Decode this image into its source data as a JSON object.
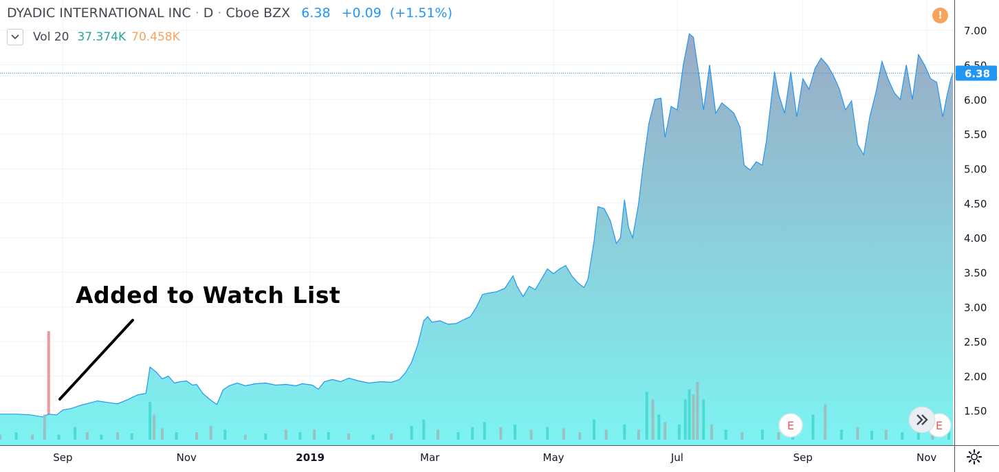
{
  "header": {
    "symbol_name": "DYADIC INTERNATIONAL INC",
    "interval": "D",
    "exchange": "Cboe BZX",
    "last_price": "6.38",
    "change": "+0.09",
    "change_pct": "(+1.51%)"
  },
  "volume_legend": {
    "label": "Vol 20",
    "value1": "37.374K",
    "value2": "70.458K"
  },
  "annotation": {
    "text": "Added to Watch List"
  },
  "icons": {
    "alert": "exclamation-icon",
    "toggle": "chevron-down-icon",
    "scroll": "double-chevron-right-icon",
    "settings": "gear-icon",
    "earnings": "earnings-marker-icon"
  },
  "earnings_marker_label": "E",
  "colors": {
    "line": "#2196f3",
    "fill_top": "#9aaac4",
    "fill_bottom": "#7df3f2",
    "price_tag": "#2196f3",
    "volume_up": "#44d6cf",
    "volume_down": "#9fb7b9",
    "alert": "#f7a35c",
    "marker_bar": "#ef9a9a",
    "change_text": "#2196f3"
  },
  "chart_data": {
    "type": "area",
    "y_axis": {
      "ylim": [
        1.1,
        7.2
      ],
      "ticks": [
        "1.50",
        "2.00",
        "2.50",
        "3.00",
        "3.50",
        "4.00",
        "4.50",
        "5.00",
        "5.50",
        "6.00",
        "6.50",
        "7.00"
      ],
      "position": "right"
    },
    "x_axis": {
      "start": "2018-08-01",
      "end": "2019-11-14",
      "tick_labels": [
        {
          "label": "Sep",
          "date": "2018-09-01"
        },
        {
          "label": "Nov",
          "date": "2018-11-01"
        },
        {
          "label": "2019",
          "date": "2019-01-01",
          "bold": true
        },
        {
          "label": "Mar",
          "date": "2019-03-01"
        },
        {
          "label": "May",
          "date": "2019-05-01"
        },
        {
          "label": "Jul",
          "date": "2019-07-01"
        },
        {
          "label": "Sep",
          "date": "2019-09-01"
        },
        {
          "label": "Nov",
          "date": "2019-11-01"
        }
      ]
    },
    "current_price": 6.38,
    "grid": true,
    "price_series": [
      [
        "2018-08-01",
        1.45
      ],
      [
        "2018-08-10",
        1.45
      ],
      [
        "2018-08-16",
        1.44
      ],
      [
        "2018-08-22",
        1.41
      ],
      [
        "2018-08-25",
        1.45
      ],
      [
        "2018-08-29",
        1.44
      ],
      [
        "2018-09-01",
        1.51
      ],
      [
        "2018-09-05",
        1.53
      ],
      [
        "2018-09-10",
        1.58
      ],
      [
        "2018-09-14",
        1.61
      ],
      [
        "2018-09-18",
        1.64
      ],
      [
        "2018-09-23",
        1.62
      ],
      [
        "2018-09-28",
        1.6
      ],
      [
        "2018-10-03",
        1.66
      ],
      [
        "2018-10-08",
        1.73
      ],
      [
        "2018-10-12",
        1.75
      ],
      [
        "2018-10-14",
        2.13
      ],
      [
        "2018-10-17",
        2.06
      ],
      [
        "2018-10-20",
        1.96
      ],
      [
        "2018-10-23",
        2.0
      ],
      [
        "2018-10-26",
        1.9
      ],
      [
        "2018-10-29",
        1.92
      ],
      [
        "2018-11-01",
        1.93
      ],
      [
        "2018-11-04",
        1.87
      ],
      [
        "2018-11-06",
        1.88
      ],
      [
        "2018-11-09",
        1.75
      ],
      [
        "2018-11-13",
        1.65
      ],
      [
        "2018-11-16",
        1.59
      ],
      [
        "2018-11-19",
        1.8
      ],
      [
        "2018-11-22",
        1.86
      ],
      [
        "2018-11-26",
        1.9
      ],
      [
        "2018-11-30",
        1.86
      ],
      [
        "2018-12-05",
        1.89
      ],
      [
        "2018-12-10",
        1.9
      ],
      [
        "2018-12-15",
        1.87
      ],
      [
        "2018-12-20",
        1.88
      ],
      [
        "2018-12-25",
        1.86
      ],
      [
        "2018-12-28",
        1.89
      ],
      [
        "2019-01-02",
        1.87
      ],
      [
        "2019-01-05",
        1.81
      ],
      [
        "2019-01-08",
        1.92
      ],
      [
        "2019-01-12",
        1.95
      ],
      [
        "2019-01-16",
        1.92
      ],
      [
        "2019-01-20",
        1.97
      ],
      [
        "2019-01-25",
        1.93
      ],
      [
        "2019-01-30",
        1.9
      ],
      [
        "2019-02-05",
        1.92
      ],
      [
        "2019-02-10",
        1.91
      ],
      [
        "2019-02-14",
        1.95
      ],
      [
        "2019-02-17",
        2.05
      ],
      [
        "2019-02-20",
        2.2
      ],
      [
        "2019-02-23",
        2.45
      ],
      [
        "2019-02-26",
        2.8
      ],
      [
        "2019-02-28",
        2.86
      ],
      [
        "2019-03-02",
        2.78
      ],
      [
        "2019-03-06",
        2.8
      ],
      [
        "2019-03-10",
        2.75
      ],
      [
        "2019-03-14",
        2.76
      ],
      [
        "2019-03-18",
        2.82
      ],
      [
        "2019-03-21",
        2.86
      ],
      [
        "2019-03-24",
        3.0
      ],
      [
        "2019-03-27",
        3.18
      ],
      [
        "2019-03-30",
        3.2
      ],
      [
        "2019-04-03",
        3.22
      ],
      [
        "2019-04-07",
        3.27
      ],
      [
        "2019-04-11",
        3.45
      ],
      [
        "2019-04-13",
        3.3
      ],
      [
        "2019-04-16",
        3.15
      ],
      [
        "2019-04-19",
        3.3
      ],
      [
        "2019-04-22",
        3.25
      ],
      [
        "2019-04-25",
        3.4
      ],
      [
        "2019-04-28",
        3.55
      ],
      [
        "2019-05-01",
        3.48
      ],
      [
        "2019-05-04",
        3.55
      ],
      [
        "2019-05-07",
        3.6
      ],
      [
        "2019-05-10",
        3.45
      ],
      [
        "2019-05-13",
        3.35
      ],
      [
        "2019-05-16",
        3.28
      ],
      [
        "2019-05-18",
        3.4
      ],
      [
        "2019-05-21",
        3.95
      ],
      [
        "2019-05-23",
        4.45
      ],
      [
        "2019-05-26",
        4.42
      ],
      [
        "2019-05-29",
        4.25
      ],
      [
        "2019-06-01",
        3.92
      ],
      [
        "2019-06-03",
        4.0
      ],
      [
        "2019-06-05",
        4.55
      ],
      [
        "2019-06-07",
        4.15
      ],
      [
        "2019-06-09",
        4.0
      ],
      [
        "2019-06-12",
        4.5
      ],
      [
        "2019-06-14",
        5.0
      ],
      [
        "2019-06-17",
        5.65
      ],
      [
        "2019-06-20",
        6.0
      ],
      [
        "2019-06-23",
        6.02
      ],
      [
        "2019-06-25",
        5.45
      ],
      [
        "2019-06-28",
        5.9
      ],
      [
        "2019-07-01",
        5.85
      ],
      [
        "2019-07-04",
        6.5
      ],
      [
        "2019-07-07",
        6.95
      ],
      [
        "2019-07-09",
        6.9
      ],
      [
        "2019-07-12",
        6.3
      ],
      [
        "2019-07-14",
        5.85
      ],
      [
        "2019-07-17",
        6.5
      ],
      [
        "2019-07-20",
        5.8
      ],
      [
        "2019-07-23",
        5.95
      ],
      [
        "2019-07-26",
        5.88
      ],
      [
        "2019-07-29",
        5.8
      ],
      [
        "2019-08-01",
        5.6
      ],
      [
        "2019-08-03",
        5.05
      ],
      [
        "2019-08-06",
        4.98
      ],
      [
        "2019-08-09",
        5.1
      ],
      [
        "2019-08-12",
        5.05
      ],
      [
        "2019-08-14",
        5.4
      ],
      [
        "2019-08-16",
        5.9
      ],
      [
        "2019-08-18",
        6.4
      ],
      [
        "2019-08-20",
        6.08
      ],
      [
        "2019-08-23",
        5.8
      ],
      [
        "2019-08-26",
        6.4
      ],
      [
        "2019-08-29",
        5.75
      ],
      [
        "2019-09-01",
        6.3
      ],
      [
        "2019-09-04",
        6.15
      ],
      [
        "2019-09-07",
        6.45
      ],
      [
        "2019-09-10",
        6.6
      ],
      [
        "2019-09-13",
        6.5
      ],
      [
        "2019-09-16",
        6.35
      ],
      [
        "2019-09-19",
        6.15
      ],
      [
        "2019-09-22",
        5.85
      ],
      [
        "2019-09-25",
        5.98
      ],
      [
        "2019-09-28",
        5.35
      ],
      [
        "2019-10-01",
        5.2
      ],
      [
        "2019-10-04",
        5.75
      ],
      [
        "2019-10-07",
        6.1
      ],
      [
        "2019-10-10",
        6.55
      ],
      [
        "2019-10-13",
        6.3
      ],
      [
        "2019-10-16",
        6.1
      ],
      [
        "2019-10-19",
        6.0
      ],
      [
        "2019-10-22",
        6.5
      ],
      [
        "2019-10-25",
        6.0
      ],
      [
        "2019-10-28",
        6.65
      ],
      [
        "2019-10-31",
        6.5
      ],
      [
        "2019-11-03",
        6.3
      ],
      [
        "2019-11-06",
        6.25
      ],
      [
        "2019-11-09",
        5.75
      ],
      [
        "2019-11-11",
        6.05
      ],
      [
        "2019-11-13",
        6.3
      ],
      [
        "2019-11-14",
        6.38
      ]
    ],
    "volume_series": [
      [
        "2018-08-01",
        0.2,
        "down"
      ],
      [
        "2018-08-09",
        0.3,
        "up"
      ],
      [
        "2018-08-17",
        0.2,
        "down"
      ],
      [
        "2018-08-23",
        1.0,
        "down"
      ],
      [
        "2018-08-30",
        0.2,
        "up"
      ],
      [
        "2018-09-07",
        0.5,
        "up"
      ],
      [
        "2018-09-13",
        0.3,
        "down"
      ],
      [
        "2018-09-20",
        0.2,
        "up"
      ],
      [
        "2018-09-28",
        0.3,
        "down"
      ],
      [
        "2018-10-05",
        0.25,
        "up"
      ],
      [
        "2018-10-14",
        1.5,
        "up"
      ],
      [
        "2018-10-16",
        1.0,
        "down"
      ],
      [
        "2018-10-20",
        0.45,
        "down"
      ],
      [
        "2018-10-27",
        0.3,
        "up"
      ],
      [
        "2018-11-06",
        0.3,
        "down"
      ],
      [
        "2018-11-13",
        0.55,
        "down"
      ],
      [
        "2018-11-20",
        0.4,
        "up"
      ],
      [
        "2018-11-30",
        0.2,
        "down"
      ],
      [
        "2018-12-10",
        0.25,
        "up"
      ],
      [
        "2018-12-20",
        0.4,
        "down"
      ],
      [
        "2018-12-27",
        0.3,
        "up"
      ],
      [
        "2019-01-03",
        0.4,
        "down"
      ],
      [
        "2019-01-10",
        0.3,
        "up"
      ],
      [
        "2019-01-20",
        0.25,
        "down"
      ],
      [
        "2019-02-01",
        0.2,
        "up"
      ],
      [
        "2019-02-10",
        0.25,
        "down"
      ],
      [
        "2019-02-20",
        0.55,
        "up"
      ],
      [
        "2019-02-26",
        0.8,
        "up"
      ],
      [
        "2019-03-05",
        0.4,
        "down"
      ],
      [
        "2019-03-15",
        0.3,
        "up"
      ],
      [
        "2019-03-22",
        0.5,
        "up"
      ],
      [
        "2019-03-28",
        0.7,
        "up"
      ],
      [
        "2019-04-05",
        0.5,
        "down"
      ],
      [
        "2019-04-12",
        0.6,
        "up"
      ],
      [
        "2019-04-20",
        0.4,
        "down"
      ],
      [
        "2019-04-28",
        0.5,
        "up"
      ],
      [
        "2019-05-06",
        0.45,
        "down"
      ],
      [
        "2019-05-14",
        0.3,
        "down"
      ],
      [
        "2019-05-21",
        0.8,
        "up"
      ],
      [
        "2019-05-27",
        0.4,
        "down"
      ],
      [
        "2019-06-05",
        0.6,
        "up"
      ],
      [
        "2019-06-12",
        0.4,
        "down"
      ],
      [
        "2019-06-16",
        1.9,
        "up"
      ],
      [
        "2019-06-19",
        1.6,
        "down"
      ],
      [
        "2019-06-22",
        1.0,
        "up"
      ],
      [
        "2019-06-25",
        0.7,
        "down"
      ],
      [
        "2019-07-02",
        0.6,
        "up"
      ],
      [
        "2019-07-05",
        1.6,
        "up"
      ],
      [
        "2019-07-07",
        2.0,
        "up"
      ],
      [
        "2019-07-09",
        1.8,
        "down"
      ],
      [
        "2019-07-11",
        2.3,
        "down"
      ],
      [
        "2019-07-14",
        1.6,
        "up"
      ],
      [
        "2019-07-18",
        0.6,
        "down"
      ],
      [
        "2019-07-25",
        0.4,
        "up"
      ],
      [
        "2019-08-02",
        0.3,
        "down"
      ],
      [
        "2019-08-12",
        0.4,
        "up"
      ],
      [
        "2019-08-20",
        0.3,
        "down"
      ],
      [
        "2019-08-27",
        0.3,
        "up"
      ],
      [
        "2019-09-06",
        1.0,
        "up"
      ],
      [
        "2019-09-12",
        1.4,
        "down"
      ],
      [
        "2019-09-20",
        0.4,
        "up"
      ],
      [
        "2019-09-28",
        0.5,
        "down"
      ],
      [
        "2019-10-05",
        0.35,
        "up"
      ],
      [
        "2019-10-12",
        0.4,
        "down"
      ],
      [
        "2019-10-20",
        0.3,
        "up"
      ],
      [
        "2019-10-28",
        0.5,
        "up"
      ],
      [
        "2019-11-04",
        0.3,
        "down"
      ],
      [
        "2019-11-12",
        0.4,
        "up"
      ]
    ],
    "volume_ylim": [
      0,
      3.0
    ],
    "events": [
      {
        "type": "earnings",
        "label": "E",
        "date": "2019-08-26"
      },
      {
        "type": "earnings",
        "label": "E",
        "date": "2019-11-12"
      }
    ],
    "marker_date": "2018-08-25"
  }
}
